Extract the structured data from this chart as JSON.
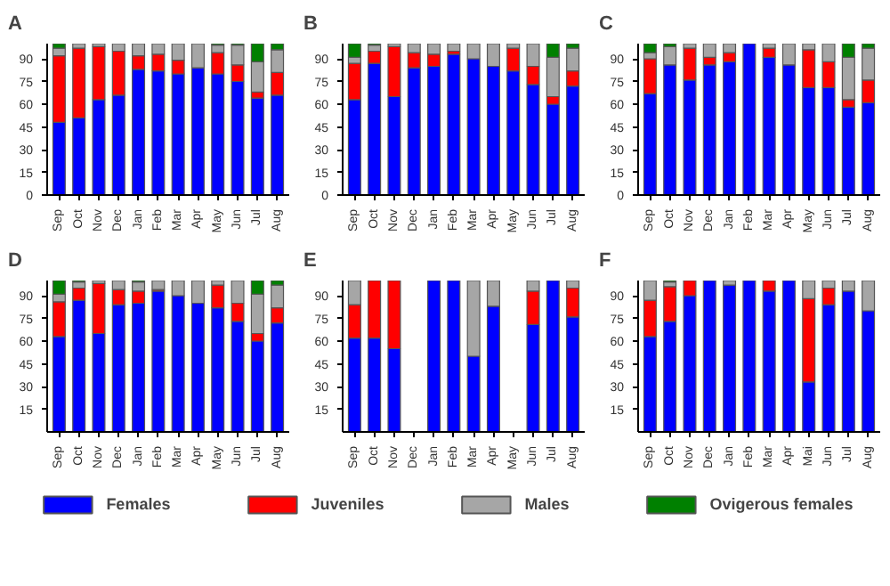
{
  "chart_data": [
    {
      "type": "bar",
      "title": "A",
      "stacked": true,
      "legend": "bottom",
      "ylim": [
        0,
        100
      ],
      "yticks": [
        0,
        15,
        30,
        45,
        60,
        75,
        90
      ],
      "grid": false,
      "categories": [
        "Sep",
        "Oct",
        "Nov",
        "Dec",
        "Jan",
        "Feb",
        "Mar",
        "Apr",
        "May",
        "Jun",
        "Jul",
        "Aug"
      ],
      "series": [
        {
          "name": "Females",
          "color": "#0000ff",
          "values": [
            48,
            51,
            63,
            66,
            83,
            82,
            80,
            84,
            80,
            75,
            64,
            66
          ]
        },
        {
          "name": "Juveniles",
          "color": "#ff0000",
          "values": [
            44,
            46,
            35,
            29,
            9,
            11,
            9,
            0,
            14,
            11,
            4,
            15
          ]
        },
        {
          "name": "Males",
          "color": "#a6a6a6",
          "values": [
            5,
            3,
            2,
            5,
            8,
            7,
            11,
            16,
            5,
            13,
            20,
            15
          ]
        },
        {
          "name": "Ovigerous females",
          "color": "#008000",
          "values": [
            3,
            0,
            0,
            0,
            0,
            0,
            0,
            0,
            1,
            1,
            12,
            4
          ]
        }
      ]
    },
    {
      "type": "bar",
      "title": "B",
      "stacked": true,
      "ylim": [
        0,
        100
      ],
      "yticks": [
        0,
        15,
        30,
        45,
        60,
        75,
        90
      ],
      "grid": false,
      "categories": [
        "Sep",
        "Oct",
        "Nov",
        "Dec",
        "Jan",
        "Feb",
        "Mar",
        "Apr",
        "May",
        "Jun",
        "Jul",
        "Aug"
      ],
      "series": [
        {
          "color": "#0000ff",
          "values": [
            63,
            87,
            65,
            84,
            85,
            93,
            90,
            85,
            82,
            73,
            60,
            72
          ]
        },
        {
          "color": "#ff0000",
          "values": [
            24,
            8,
            33,
            10,
            8,
            2,
            0,
            0,
            15,
            12,
            5,
            10
          ]
        },
        {
          "color": "#a6a6a6",
          "values": [
            4,
            4,
            2,
            6,
            7,
            5,
            10,
            15,
            3,
            15,
            26,
            15
          ]
        },
        {
          "color": "#008000",
          "values": [
            9,
            1,
            0,
            0,
            0,
            0,
            0,
            0,
            0,
            0,
            9,
            3
          ]
        }
      ]
    },
    {
      "type": "bar",
      "title": "C",
      "stacked": true,
      "ylim": [
        0,
        100
      ],
      "yticks": [
        0,
        15,
        30,
        45,
        60,
        75,
        90
      ],
      "grid": false,
      "categories": [
        "Sep",
        "Oct",
        "Nov",
        "Dec",
        "Jan",
        "Feb",
        "Mar",
        "Apr",
        "May",
        "Jun",
        "Jul",
        "Aug"
      ],
      "series": [
        {
          "color": "#0000ff",
          "values": [
            67,
            86,
            76,
            86,
            88,
            100,
            91,
            86,
            71,
            71,
            58,
            61
          ]
        },
        {
          "color": "#ff0000",
          "values": [
            23,
            0,
            21,
            5,
            6,
            0,
            6,
            0,
            25,
            17,
            5,
            15
          ]
        },
        {
          "color": "#a6a6a6",
          "values": [
            4,
            12,
            3,
            9,
            6,
            0,
            3,
            14,
            4,
            12,
            28,
            21
          ]
        },
        {
          "color": "#008000",
          "values": [
            6,
            2,
            0,
            0,
            0,
            0,
            0,
            0,
            0,
            0,
            9,
            3
          ]
        }
      ]
    },
    {
      "type": "bar",
      "title": "D",
      "stacked": true,
      "ylim": [
        0,
        100
      ],
      "yticks": [
        15,
        30,
        45,
        60,
        75,
        90
      ],
      "grid": false,
      "categories": [
        "Sep",
        "Oct",
        "Nov",
        "Dec",
        "Jan",
        "Feb",
        "Mar",
        "Apr",
        "May",
        "Jun",
        "Jul",
        "Aug"
      ],
      "series": [
        {
          "color": "#0000ff",
          "values": [
            63,
            87,
            65,
            84,
            85,
            93,
            90,
            85,
            82,
            73,
            60,
            72
          ]
        },
        {
          "color": "#ff0000",
          "values": [
            23,
            8,
            33,
            10,
            8,
            1,
            0,
            0,
            15,
            12,
            5,
            10
          ]
        },
        {
          "color": "#a6a6a6",
          "values": [
            5,
            4,
            2,
            6,
            6,
            6,
            10,
            15,
            3,
            15,
            26,
            15
          ]
        },
        {
          "color": "#008000",
          "values": [
            9,
            1,
            0,
            0,
            1,
            0,
            0,
            0,
            0,
            0,
            9,
            3
          ]
        }
      ]
    },
    {
      "type": "bar",
      "title": "E",
      "stacked": true,
      "ylim": [
        0,
        100
      ],
      "yticks": [
        15,
        30,
        45,
        60,
        75,
        90
      ],
      "grid": false,
      "categories": [
        "Sep",
        "Oct",
        "Nov",
        "Dec",
        "Jan",
        "Feb",
        "Mar",
        "Apr",
        "May",
        "Jun",
        "Jul",
        "Aug"
      ],
      "series": [
        {
          "color": "#0000ff",
          "values": [
            62,
            62,
            55,
            null,
            100,
            100,
            50,
            83,
            null,
            71,
            100,
            76
          ]
        },
        {
          "color": "#ff0000",
          "values": [
            22,
            38,
            45,
            null,
            0,
            0,
            0,
            0,
            null,
            22,
            0,
            19
          ]
        },
        {
          "color": "#a6a6a6",
          "values": [
            16,
            0,
            0,
            null,
            0,
            0,
            50,
            17,
            null,
            7,
            0,
            5
          ]
        },
        {
          "color": "#008000",
          "values": [
            0,
            0,
            0,
            null,
            0,
            0,
            0,
            0,
            null,
            0,
            0,
            0
          ]
        }
      ]
    },
    {
      "type": "bar",
      "title": "F",
      "stacked": true,
      "ylim": [
        0,
        100
      ],
      "yticks": [
        15,
        30,
        45,
        60,
        75,
        90
      ],
      "grid": false,
      "categories": [
        "Sep",
        "Oct",
        "Nov",
        "Dec",
        "Jan",
        "Feb",
        "Mar",
        "Apr",
        "Mai",
        "Jun",
        "Jul",
        "Aug"
      ],
      "series": [
        {
          "color": "#0000ff",
          "values": [
            63,
            73,
            90,
            100,
            97,
            100,
            93,
            100,
            33,
            84,
            93,
            80
          ]
        },
        {
          "color": "#ff0000",
          "values": [
            24,
            23,
            10,
            0,
            0,
            0,
            7,
            0,
            55,
            11,
            0,
            0
          ]
        },
        {
          "color": "#a6a6a6",
          "values": [
            13,
            3,
            0,
            0,
            3,
            0,
            0,
            0,
            12,
            5,
            7,
            20
          ]
        },
        {
          "color": "#008000",
          "values": [
            0,
            1,
            0,
            0,
            0,
            0,
            0,
            0,
            0,
            0,
            0,
            0
          ]
        }
      ]
    }
  ]
}
